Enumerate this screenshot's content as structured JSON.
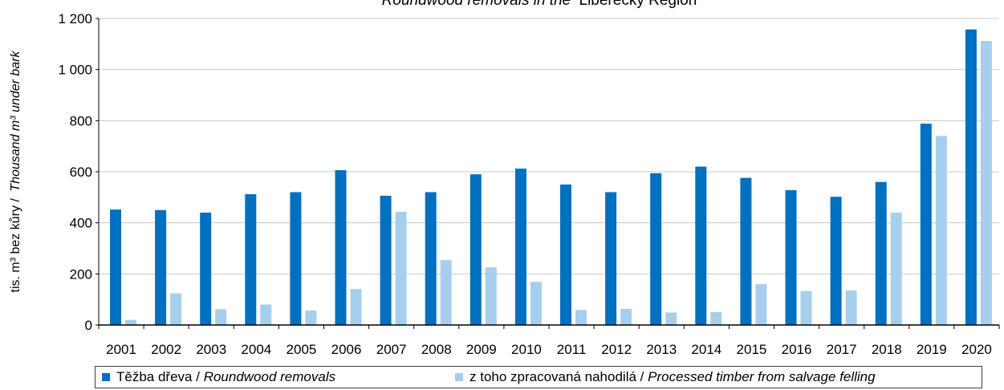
{
  "colors": {
    "removals": "#0070c0",
    "salvage": "#a6cfee",
    "grid": "#c8c8c8",
    "axis": "#000000"
  },
  "chart_data": {
    "type": "bar",
    "title_italic": "Roundwood removals in the",
    "title_plain": "Liberecký Region",
    "ylabel_plain": "tis. m³ bez kůry /",
    "ylabel_italic": "Thousand m³ under bark",
    "ylim": [
      0,
      1200
    ],
    "yticks": [
      "0",
      "200",
      "400",
      "600",
      "800",
      "1 000",
      "1 200"
    ],
    "ytick_values": [
      0,
      200,
      400,
      600,
      800,
      1000,
      1200
    ],
    "grid": true,
    "legend_position": "bottom",
    "categories": [
      "2001",
      "2002",
      "2003",
      "2004",
      "2005",
      "2006",
      "2007",
      "2008",
      "2009",
      "2010",
      "2011",
      "2012",
      "2013",
      "2014",
      "2015",
      "2016",
      "2017",
      "2018",
      "2019",
      "2020"
    ],
    "series": [
      {
        "name": "Těžba dřeva / Roundwood removals",
        "name_plain": "Těžba dřeva /",
        "name_italic": "Roundwood removals",
        "values": [
          452,
          450,
          440,
          512,
          520,
          606,
          506,
          520,
          590,
          612,
          550,
          520,
          594,
          620,
          576,
          528,
          502,
          560,
          788,
          1157
        ]
      },
      {
        "name": "z toho zpracovaná nahodilá / Processed timber from salvage felling",
        "name_plain": "z toho zpracovaná nahodilá /",
        "name_italic": "Processed timber from salvage felling",
        "values": [
          20,
          124,
          62,
          80,
          57,
          141,
          443,
          254,
          226,
          169,
          59,
          63,
          49,
          51,
          160,
          133,
          135,
          440,
          740,
          1112
        ]
      }
    ]
  }
}
